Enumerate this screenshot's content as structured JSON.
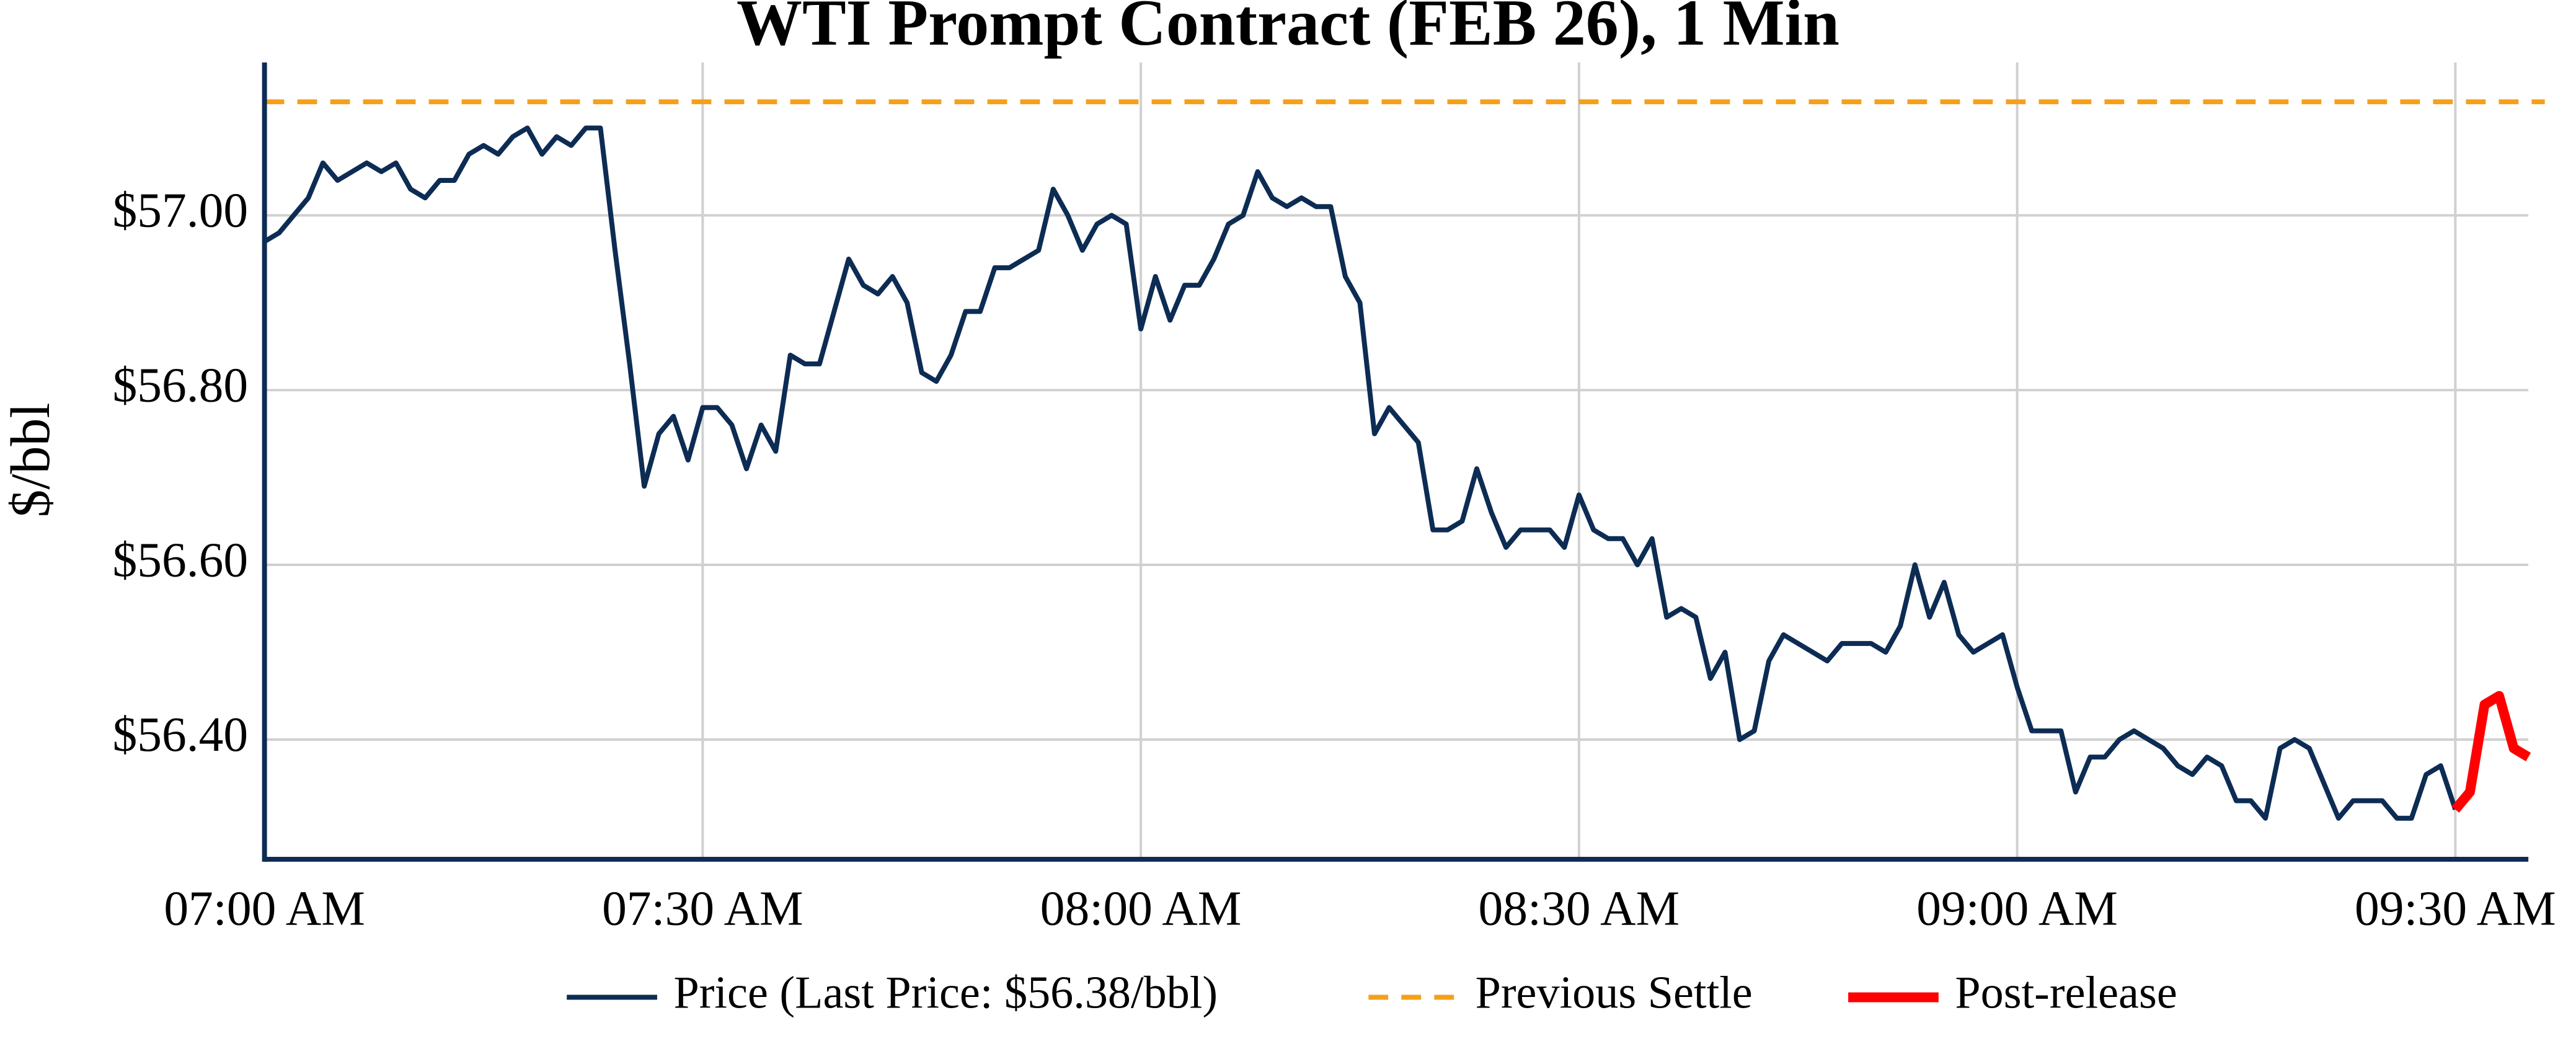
{
  "chart_data": {
    "type": "line",
    "title": "WTI Prompt Contract (FEB 26), 1 Min",
    "ylabel": "$/bbl",
    "x": [
      "07:00 AM",
      "07:01 AM",
      "07:02 AM",
      "07:03 AM",
      "07:04 AM",
      "07:05 AM",
      "07:06 AM",
      "07:07 AM",
      "07:08 AM",
      "07:09 AM",
      "07:10 AM",
      "07:11 AM",
      "07:12 AM",
      "07:13 AM",
      "07:14 AM",
      "07:15 AM",
      "07:16 AM",
      "07:17 AM",
      "07:18 AM",
      "07:19 AM",
      "07:20 AM",
      "07:21 AM",
      "07:22 AM",
      "07:23 AM",
      "07:24 AM",
      "07:25 AM",
      "07:26 AM",
      "07:27 AM",
      "07:28 AM",
      "07:29 AM",
      "07:30 AM",
      "07:31 AM",
      "07:32 AM",
      "07:33 AM",
      "07:34 AM",
      "07:35 AM",
      "07:36 AM",
      "07:37 AM",
      "07:38 AM",
      "07:39 AM",
      "07:40 AM",
      "07:41 AM",
      "07:42 AM",
      "07:43 AM",
      "07:44 AM",
      "07:45 AM",
      "07:46 AM",
      "07:47 AM",
      "07:48 AM",
      "07:49 AM",
      "07:50 AM",
      "07:51 AM",
      "07:52 AM",
      "07:53 AM",
      "07:54 AM",
      "07:55 AM",
      "07:56 AM",
      "07:57 AM",
      "07:58 AM",
      "07:59 AM",
      "08:00 AM",
      "08:01 AM",
      "08:02 AM",
      "08:03 AM",
      "08:04 AM",
      "08:05 AM",
      "08:06 AM",
      "08:07 AM",
      "08:08 AM",
      "08:09 AM",
      "08:10 AM",
      "08:11 AM",
      "08:12 AM",
      "08:13 AM",
      "08:14 AM",
      "08:15 AM",
      "08:16 AM",
      "08:17 AM",
      "08:18 AM",
      "08:19 AM",
      "08:20 AM",
      "08:21 AM",
      "08:22 AM",
      "08:23 AM",
      "08:24 AM",
      "08:25 AM",
      "08:26 AM",
      "08:27 AM",
      "08:28 AM",
      "08:29 AM",
      "08:30 AM",
      "08:31 AM",
      "08:32 AM",
      "08:33 AM",
      "08:34 AM",
      "08:35 AM",
      "08:36 AM",
      "08:37 AM",
      "08:38 AM",
      "08:39 AM",
      "08:40 AM",
      "08:41 AM",
      "08:42 AM",
      "08:43 AM",
      "08:44 AM",
      "08:45 AM",
      "08:46 AM",
      "08:47 AM",
      "08:48 AM",
      "08:49 AM",
      "08:50 AM",
      "08:51 AM",
      "08:52 AM",
      "08:53 AM",
      "08:54 AM",
      "08:55 AM",
      "08:56 AM",
      "08:57 AM",
      "08:58 AM",
      "08:59 AM",
      "09:00 AM",
      "09:01 AM",
      "09:02 AM",
      "09:03 AM",
      "09:04 AM",
      "09:05 AM",
      "09:06 AM",
      "09:07 AM",
      "09:08 AM",
      "09:09 AM",
      "09:10 AM",
      "09:11 AM",
      "09:12 AM",
      "09:13 AM",
      "09:14 AM",
      "09:15 AM",
      "09:16 AM",
      "09:17 AM",
      "09:18 AM",
      "09:19 AM",
      "09:20 AM",
      "09:21 AM",
      "09:22 AM",
      "09:23 AM",
      "09:24 AM",
      "09:25 AM",
      "09:26 AM",
      "09:27 AM",
      "09:28 AM",
      "09:29 AM",
      "09:30 AM",
      "09:31 AM",
      "09:32 AM",
      "09:33 AM",
      "09:34 AM",
      "09:35 AM"
    ],
    "series": [
      {
        "name": "Price (Last Price: $56.38/bbl)",
        "color": "#0d2c54",
        "width": 3,
        "values": [
          56.97,
          56.98,
          57.0,
          57.02,
          57.06,
          57.04,
          57.05,
          57.06,
          57.05,
          57.06,
          57.03,
          57.02,
          57.04,
          57.04,
          57.07,
          57.08,
          57.07,
          57.09,
          57.1,
          57.07,
          57.09,
          57.08,
          57.1,
          57.1,
          56.96,
          56.83,
          56.69,
          56.75,
          56.77,
          56.72,
          56.78,
          56.78,
          56.76,
          56.71,
          56.76,
          56.73,
          56.84,
          56.83,
          56.83,
          56.89,
          56.95,
          56.92,
          56.91,
          56.93,
          56.9,
          56.82,
          56.81,
          56.84,
          56.89,
          56.89,
          56.94,
          56.94,
          56.95,
          56.96,
          57.03,
          57.0,
          56.96,
          56.99,
          57.0,
          56.99,
          56.87,
          56.93,
          56.88,
          56.92,
          56.92,
          56.95,
          56.99,
          57.0,
          57.05,
          57.02,
          57.01,
          57.02,
          57.01,
          57.01,
          56.93,
          56.9,
          56.75,
          56.78,
          56.76,
          56.74,
          56.64,
          56.64,
          56.65,
          56.71,
          56.66,
          56.62,
          56.64,
          56.64,
          56.64,
          56.62,
          56.68,
          56.64,
          56.63,
          56.63,
          56.6,
          56.63,
          56.54,
          56.55,
          56.54,
          56.47,
          56.5,
          56.4,
          56.41,
          56.49,
          56.52,
          56.51,
          56.5,
          56.49,
          56.51,
          56.51,
          56.51,
          56.5,
          56.53,
          56.6,
          56.54,
          56.58,
          56.52,
          56.5,
          56.51,
          56.52,
          56.46,
          56.41,
          56.41,
          56.41,
          56.34,
          56.38,
          56.38,
          56.4,
          56.41,
          56.4,
          56.39,
          56.37,
          56.36,
          56.38,
          56.37,
          56.33,
          56.33,
          56.31,
          56.39,
          56.4,
          56.39,
          56.35,
          56.31,
          56.33,
          56.33,
          56.33,
          56.31,
          56.31,
          56.36,
          56.37,
          56.32,
          null,
          null,
          null,
          null,
          null
        ]
      },
      {
        "name": "Post-release",
        "color": "#ff0000",
        "width": 6,
        "values": [
          null,
          null,
          null,
          null,
          null,
          null,
          null,
          null,
          null,
          null,
          null,
          null,
          null,
          null,
          null,
          null,
          null,
          null,
          null,
          null,
          null,
          null,
          null,
          null,
          null,
          null,
          null,
          null,
          null,
          null,
          null,
          null,
          null,
          null,
          null,
          null,
          null,
          null,
          null,
          null,
          null,
          null,
          null,
          null,
          null,
          null,
          null,
          null,
          null,
          null,
          null,
          null,
          null,
          null,
          null,
          null,
          null,
          null,
          null,
          null,
          null,
          null,
          null,
          null,
          null,
          null,
          null,
          null,
          null,
          null,
          null,
          null,
          null,
          null,
          null,
          null,
          null,
          null,
          null,
          null,
          null,
          null,
          null,
          null,
          null,
          null,
          null,
          null,
          null,
          null,
          null,
          null,
          null,
          null,
          null,
          null,
          null,
          null,
          null,
          null,
          null,
          null,
          null,
          null,
          null,
          null,
          null,
          null,
          null,
          null,
          null,
          null,
          null,
          null,
          null,
          null,
          null,
          null,
          null,
          null,
          null,
          null,
          null,
          null,
          null,
          null,
          null,
          null,
          null,
          null,
          null,
          null,
          null,
          null,
          null,
          null,
          null,
          null,
          null,
          null,
          null,
          null,
          null,
          null,
          null,
          null,
          null,
          null,
          null,
          null,
          56.32,
          56.34,
          56.44,
          56.45,
          56.39,
          56.38
        ]
      }
    ],
    "reference_lines": [
      {
        "name": "Previous Settle",
        "value": 57.13,
        "color": "#f5a01a"
      }
    ],
    "xlim": [
      "07:00 AM",
      "09:35 AM"
    ],
    "xticks": [
      "07:00 AM",
      "07:30 AM",
      "08:00 AM",
      "08:30 AM",
      "09:00 AM",
      "09:30 AM"
    ],
    "ylim": [
      56.263,
      57.175
    ],
    "yticks": [
      {
        "value": 56.4,
        "label": "$56.40"
      },
      {
        "value": 56.6,
        "label": "$56.60"
      },
      {
        "value": 56.8,
        "label": "$56.80"
      },
      {
        "value": 57,
        "label": "$57.00"
      }
    ],
    "grid": true,
    "legend": "bottom"
  }
}
